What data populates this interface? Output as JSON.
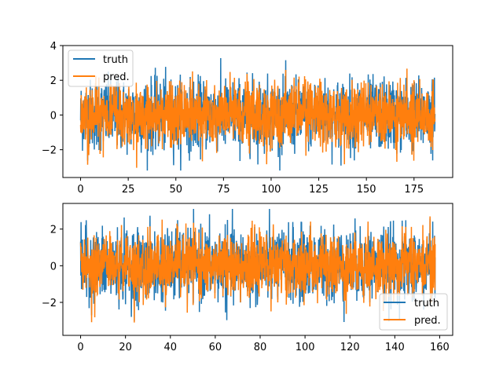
{
  "chart_data": [
    {
      "type": "line",
      "title": "",
      "xlabel": "",
      "ylabel": "",
      "xlim": [
        -9.3,
        195.3
      ],
      "ylim": [
        -3.6,
        4.0
      ],
      "xticks": [
        0,
        25,
        50,
        75,
        100,
        125,
        150,
        175
      ],
      "xtick_labels": [
        "0",
        "25",
        "50",
        "75",
        "100",
        "125",
        "150",
        "175"
      ],
      "yticks": [
        -2,
        0,
        2,
        4
      ],
      "ytick_labels": [
        "−2",
        "0",
        "2",
        "4"
      ],
      "x_range": [
        0,
        186
      ],
      "grid": false,
      "legend_position": "upper left",
      "series": [
        {
          "name": "truth",
          "color": "#1f77b4",
          "min": -3.2,
          "max": 3.8,
          "mean": 0.0,
          "std": 1.0
        },
        {
          "name": "pred.",
          "color": "#ff7f0e",
          "min": -3.2,
          "max": 3.0,
          "mean": 0.0,
          "std": 0.9
        }
      ]
    },
    {
      "type": "line",
      "title": "",
      "xlabel": "",
      "ylabel": "",
      "xlim": [
        -7.9,
        165.8
      ],
      "ylim": [
        -3.8,
        3.4
      ],
      "xticks": [
        0,
        20,
        40,
        60,
        80,
        100,
        120,
        140,
        160
      ],
      "xtick_labels": [
        "0",
        "20",
        "40",
        "60",
        "80",
        "100",
        "120",
        "140",
        "160"
      ],
      "yticks": [
        -2,
        0,
        2
      ],
      "ytick_labels": [
        "−2",
        "0",
        "2"
      ],
      "x_range": [
        0,
        158
      ],
      "grid": false,
      "legend_position": "lower right",
      "series": [
        {
          "name": "truth",
          "color": "#1f77b4",
          "min": -3.5,
          "max": 3.1,
          "mean": 0.0,
          "std": 1.0
        },
        {
          "name": "pred.",
          "color": "#ff7f0e",
          "min": -3.1,
          "max": 3.0,
          "mean": 0.0,
          "std": 0.9
        }
      ]
    }
  ],
  "legend": {
    "top": [
      {
        "label": "truth"
      },
      {
        "label": "pred."
      }
    ],
    "bottom": [
      {
        "label": "truth"
      },
      {
        "label": "pred."
      }
    ]
  }
}
